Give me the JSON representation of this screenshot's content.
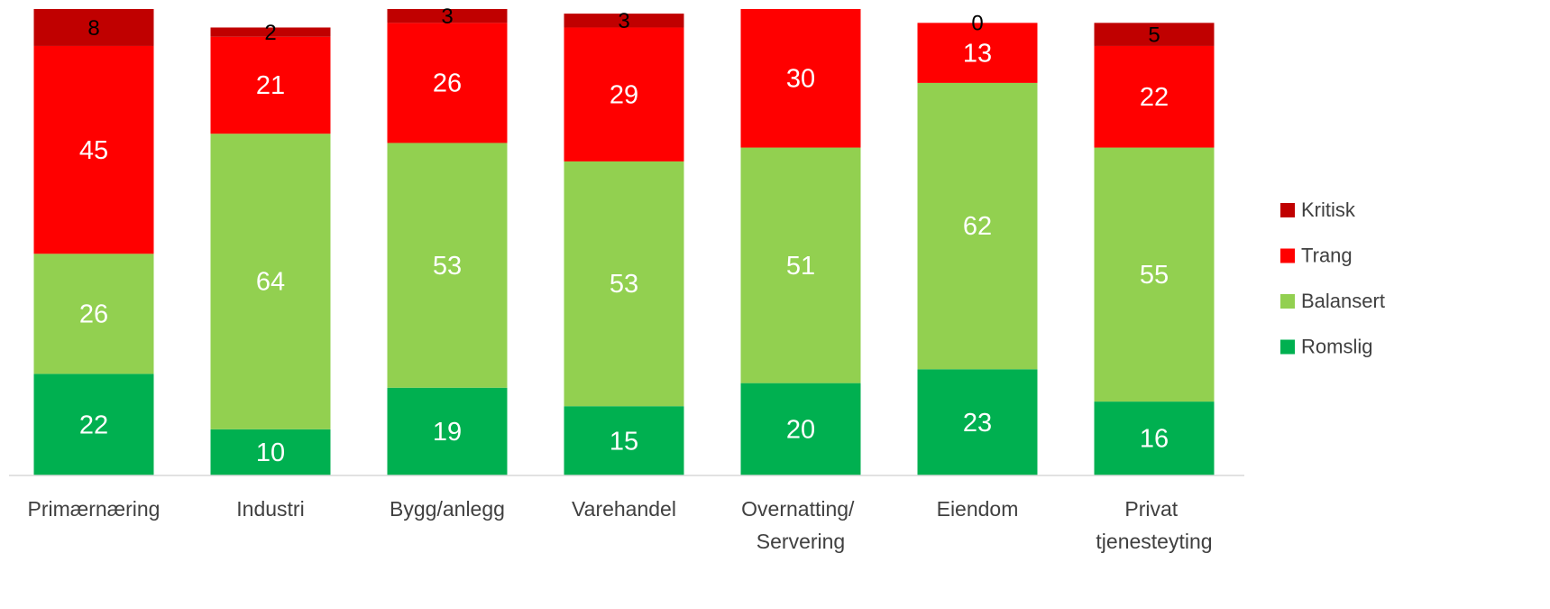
{
  "chart_data": {
    "type": "stacked_bar",
    "categories": [
      "Primærnæring",
      "Industri",
      "Bygg/anlegg",
      "Varehandel",
      "Overnatting/ Servering",
      "Eiendom",
      "Privat tjenesteyting"
    ],
    "series": [
      {
        "name": "Romslig",
        "color": "#00b050",
        "values": [
          22,
          10,
          19,
          15,
          20,
          23,
          16
        ]
      },
      {
        "name": "Balansert",
        "color": "#92d050",
        "values": [
          26,
          64,
          53,
          53,
          51,
          62,
          55
        ]
      },
      {
        "name": "Trang",
        "color": "#ff0000",
        "values": [
          45,
          21,
          26,
          29,
          30,
          13,
          22
        ]
      },
      {
        "name": "Kritisk",
        "color": "#c00000",
        "values": [
          8,
          2,
          3,
          3,
          null,
          0,
          5
        ]
      }
    ],
    "ylim": [
      0,
      101
    ],
    "legend": "right"
  }
}
